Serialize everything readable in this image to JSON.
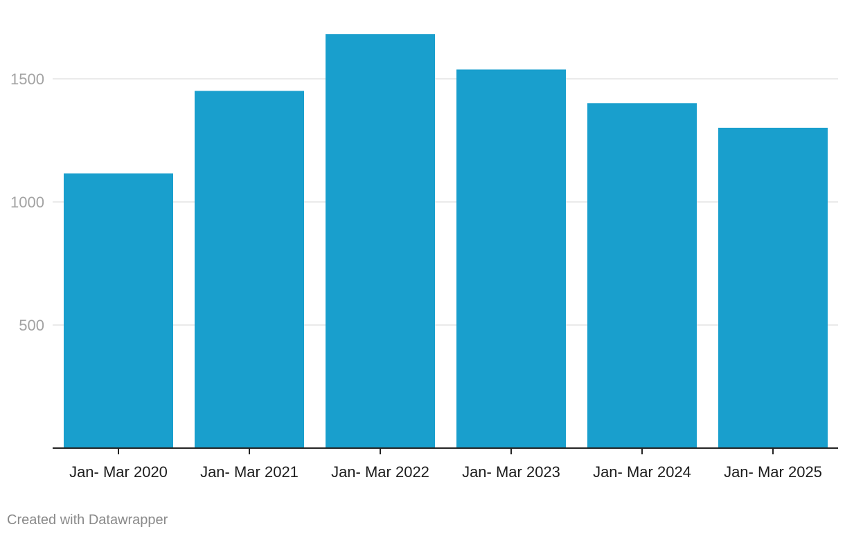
{
  "chart_data": {
    "type": "bar",
    "categories": [
      "Jan- Mar 2020",
      "Jan- Mar 2021",
      "Jan- Mar 2022",
      "Jan- Mar 2023",
      "Jan- Mar 2024",
      "Jan- Mar 2025"
    ],
    "values": [
      1116,
      1451,
      1682,
      1538,
      1401,
      1301
    ],
    "title": "",
    "xlabel": "",
    "ylabel": "",
    "ylim": [
      0,
      1700
    ],
    "yticks": [
      500,
      1000,
      1500
    ],
    "grid": true,
    "colors": {
      "bar": "#199fcd",
      "grid": "#e3e3e3",
      "axis": "#222222"
    }
  },
  "footer": {
    "credit": "Created with Datawrapper"
  }
}
